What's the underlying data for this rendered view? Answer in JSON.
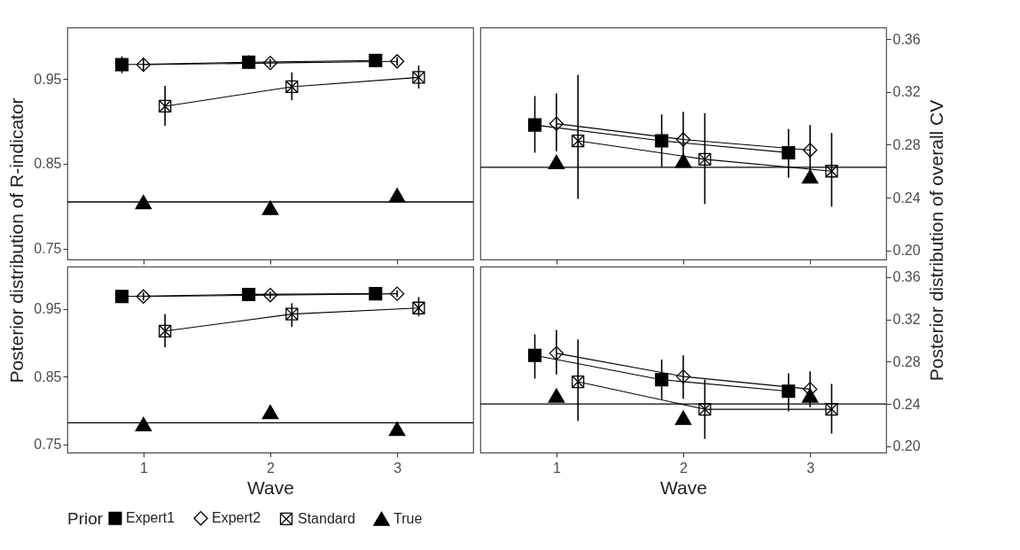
{
  "chart_data": [
    {
      "type": "line",
      "ylabel": "Posterior distribution of R-indicator",
      "xlim": [
        0.4,
        3.6
      ],
      "xticks": [
        1,
        2,
        3
      ],
      "ylim": [
        0.737,
        1.011
      ],
      "yticks": [
        0.75,
        0.85,
        0.95
      ],
      "tick_labels": "y",
      "grid": false,
      "legend": "bottom",
      "legend_title": "Prior",
      "series": [
        {
          "name": "Expert1",
          "color": "#000000",
          "marker": "square",
          "x": [
            0.83,
            1.83,
            2.83
          ],
          "values": [
            0.967,
            0.97,
            0.972
          ],
          "errors": [
            [
              0.957,
              0.977
            ],
            [
              0.962,
              0.978
            ],
            [
              0.964,
              0.979
            ]
          ]
        },
        {
          "name": "Expert2",
          "color": "#000000",
          "marker": "diamond",
          "x": [
            1,
            2,
            3
          ],
          "values": [
            0.967,
            0.969,
            0.971
          ],
          "errors": [
            [
              0.96,
              0.975
            ],
            [
              0.964,
              0.974
            ],
            [
              0.966,
              0.976
            ]
          ]
        },
        {
          "name": "Standard",
          "color": "#000000",
          "marker": "cross",
          "x": [
            1.17,
            2.17,
            3.17
          ],
          "values": [
            0.918,
            0.941,
            0.952
          ],
          "errors": [
            [
              0.895,
              0.942
            ],
            [
              0.925,
              0.958
            ],
            [
              0.939,
              0.966
            ]
          ]
        },
        {
          "name": "True",
          "type": "scatter",
          "color": "#000000",
          "marker": "triangle",
          "x": [
            1,
            2,
            3
          ],
          "values": [
            0.805,
            0.798,
            0.813
          ]
        }
      ],
      "ref_lines": [
        {
          "axis": "y",
          "value": 0.805
        }
      ]
    },
    {
      "type": "line",
      "ylabel": "Posterior distribution of overall CV",
      "xlim": [
        0.4,
        3.6
      ],
      "xticks": [
        1,
        2,
        3
      ],
      "ylim": [
        0.193,
        0.369
      ],
      "yticks": [
        {
          "value": 0.2,
          "label": "0.20"
        },
        0.24,
        0.28,
        0.32,
        0.36
      ],
      "tick_labels": "y",
      "grid": false,
      "series": [
        {
          "name": "Expert1",
          "color": "#000000",
          "marker": "square",
          "x": [
            0.83,
            1.83,
            2.83
          ],
          "values": [
            0.295,
            0.283,
            0.274
          ],
          "errors": [
            [
              0.274,
              0.317
            ],
            [
              0.263,
              0.303
            ],
            [
              0.255,
              0.292
            ]
          ]
        },
        {
          "name": "Expert2",
          "color": "#000000",
          "marker": "diamond",
          "x": [
            1,
            2,
            3
          ],
          "values": [
            0.296,
            0.284,
            0.276
          ],
          "errors": [
            [
              0.275,
              0.319
            ],
            [
              0.269,
              0.305
            ],
            [
              0.257,
              0.295
            ]
          ]
        },
        {
          "name": "Standard",
          "color": "#000000",
          "marker": "cross",
          "x": [
            1.17,
            2.17,
            3.17
          ],
          "values": [
            0.283,
            0.269,
            0.26
          ],
          "errors": [
            [
              0.239,
              0.333
            ],
            [
              0.235,
              0.304
            ],
            [
              0.233,
              0.289
            ]
          ]
        },
        {
          "name": "True",
          "type": "scatter",
          "color": "#000000",
          "marker": "triangle",
          "x": [
            1,
            2,
            3
          ],
          "values": [
            0.267,
            0.268,
            0.256
          ]
        }
      ],
      "ref_lines": [
        {
          "axis": "y",
          "value": 0.263
        }
      ]
    },
    {
      "type": "line",
      "xlabel": "Wave",
      "xlim": [
        0.4,
        3.6
      ],
      "xticks": [
        1,
        2,
        3
      ],
      "ylim": [
        0.738,
        1.012
      ],
      "yticks": [
        0.75,
        0.85,
        0.95
      ],
      "grid": false,
      "series": [
        {
          "name": "Expert1",
          "color": "#000000",
          "marker": "square",
          "x": [
            0.83,
            1.83,
            2.83
          ],
          "values": [
            0.968,
            0.971,
            0.972
          ],
          "errors": [
            [
              0.96,
              0.977
            ],
            [
              0.964,
              0.977
            ],
            null
          ]
        },
        {
          "name": "Expert2",
          "color": "#000000",
          "marker": "diamond",
          "x": [
            1,
            2,
            3
          ],
          "values": [
            0.968,
            0.97,
            0.972
          ],
          "errors": [
            [
              0.962,
              0.974
            ],
            [
              0.965,
              0.975
            ],
            [
              0.967,
              0.977
            ]
          ]
        },
        {
          "name": "Standard",
          "color": "#000000",
          "marker": "cross",
          "x": [
            1.17,
            2.17,
            3.17
          ],
          "values": [
            0.917,
            0.942,
            0.951
          ],
          "errors": [
            [
              0.893,
              0.942
            ],
            [
              0.923,
              0.958
            ],
            [
              0.939,
              0.967
            ]
          ]
        },
        {
          "name": "True",
          "type": "scatter",
          "color": "#000000",
          "marker": "triangle",
          "x": [
            1,
            2,
            3
          ],
          "values": [
            0.78,
            0.798,
            0.773
          ]
        }
      ],
      "ref_lines": [
        {
          "axis": "y",
          "value": 0.782
        }
      ]
    },
    {
      "type": "line",
      "xlabel": "Wave",
      "xlim": [
        0.4,
        3.6
      ],
      "xticks": [
        1,
        2,
        3
      ],
      "ylim": [
        0.194,
        0.37
      ],
      "yticks": [
        {
          "value": 0.2,
          "label": "0.20"
        },
        0.24,
        0.28,
        0.32,
        0.36
      ],
      "grid": false,
      "series": [
        {
          "name": "Expert1",
          "color": "#000000",
          "marker": "square",
          "x": [
            0.83,
            1.83,
            2.83
          ],
          "values": [
            0.286,
            0.263,
            0.252
          ],
          "errors": [
            [
              0.264,
              0.306
            ],
            [
              0.244,
              0.282
            ],
            [
              0.233,
              0.269
            ]
          ]
        },
        {
          "name": "Expert2",
          "color": "#000000",
          "marker": "diamond",
          "x": [
            1,
            2,
            3
          ],
          "values": [
            0.288,
            0.266,
            0.254
          ],
          "errors": [
            [
              0.268,
              0.31
            ],
            [
              0.245,
              0.286
            ],
            [
              0.237,
              0.271
            ]
          ]
        },
        {
          "name": "Standard",
          "color": "#000000",
          "marker": "cross",
          "x": [
            1.17,
            2.17,
            3.17
          ],
          "values": [
            0.261,
            0.235,
            0.235
          ],
          "errors": [
            [
              0.224,
              0.301
            ],
            [
              0.207,
              0.263
            ],
            [
              0.212,
              0.259
            ]
          ]
        },
        {
          "name": "True",
          "type": "scatter",
          "color": "#000000",
          "marker": "triangle",
          "x": [
            1,
            2,
            3
          ],
          "values": [
            0.248,
            0.227,
            0.248
          ]
        }
      ],
      "ref_lines": [
        {
          "axis": "y",
          "value": 0.24
        }
      ]
    }
  ]
}
